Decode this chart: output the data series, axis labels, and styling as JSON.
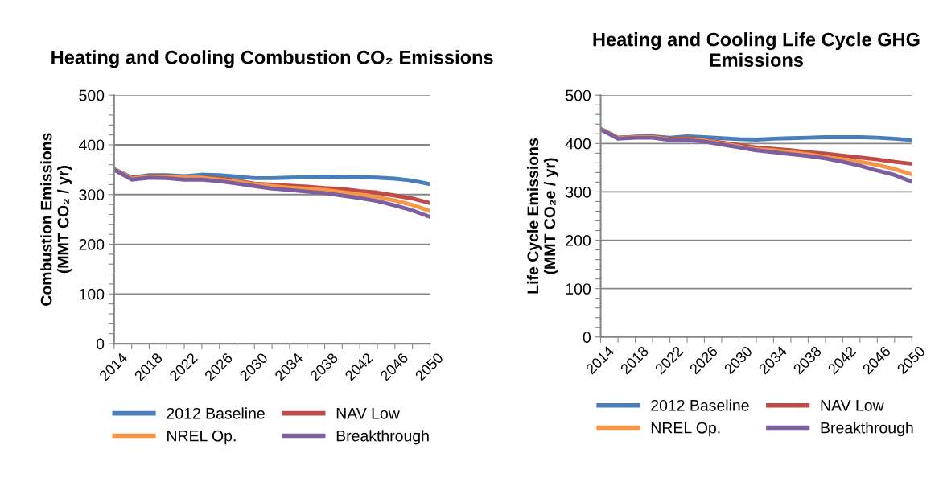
{
  "chart_data": [
    {
      "type": "line",
      "title": "Heating and Cooling Combustion CO₂ Emissions",
      "ylabel": "Combustion Emissions\n(MMT CO₂ / yr)",
      "x": [
        2014,
        2016,
        2018,
        2020,
        2022,
        2024,
        2026,
        2028,
        2030,
        2032,
        2034,
        2036,
        2038,
        2040,
        2042,
        2044,
        2046,
        2048,
        2050
      ],
      "xlim": [
        2014,
        2050
      ],
      "xticks": [
        2014,
        {
          "value": 2016,
          "label": null
        },
        2018,
        {
          "value": 2020,
          "label": null
        },
        2022,
        {
          "value": 2024,
          "label": null
        },
        2026,
        {
          "value": 2028,
          "label": null
        },
        2030,
        {
          "value": 2032,
          "label": null
        },
        2034,
        {
          "value": 2036,
          "label": null
        },
        2038,
        {
          "value": 2040,
          "label": null
        },
        2042,
        {
          "value": 2044,
          "label": null
        },
        2046,
        {
          "value": 2048,
          "label": null
        },
        2050
      ],
      "ylim": [
        0,
        500
      ],
      "yticks": [
        0,
        {
          "value": 20,
          "label": null
        },
        {
          "value": 40,
          "label": null
        },
        {
          "value": 60,
          "label": null
        },
        {
          "value": 80,
          "label": null
        },
        100,
        {
          "value": 120,
          "label": null
        },
        {
          "value": 140,
          "label": null
        },
        {
          "value": 160,
          "label": null
        },
        {
          "value": 180,
          "label": null
        },
        200,
        {
          "value": 220,
          "label": null
        },
        {
          "value": 240,
          "label": null
        },
        {
          "value": 260,
          "label": null
        },
        {
          "value": 280,
          "label": null
        },
        300,
        {
          "value": 320,
          "label": null
        },
        {
          "value": 340,
          "label": null
        },
        {
          "value": 360,
          "label": null
        },
        {
          "value": 380,
          "label": null
        },
        400,
        {
          "value": 420,
          "label": null
        },
        {
          "value": 440,
          "label": null
        },
        {
          "value": 460,
          "label": null
        },
        {
          "value": 480,
          "label": null
        },
        500
      ],
      "grid": "y",
      "legend": "bottom",
      "marker": "none",
      "line_style": "solid",
      "series": [
        {
          "name": "2012 Baseline",
          "color": "#4a7ebb",
          "values": [
            351,
            334,
            339,
            339,
            337,
            340,
            339,
            336,
            333,
            333,
            334,
            335,
            336,
            335,
            335,
            334,
            332,
            328,
            321
          ]
        },
        {
          "name": "NAV Low",
          "color": "#be4b48",
          "values": [
            351,
            333,
            337,
            337,
            335,
            335,
            332,
            328,
            322,
            320,
            318,
            316,
            313,
            311,
            307,
            304,
            298,
            292,
            283
          ]
        },
        {
          "name": "NREL Op.",
          "color": "#f79646",
          "values": [
            351,
            332,
            336,
            336,
            334,
            334,
            330,
            326,
            321,
            317,
            314,
            312,
            309,
            305,
            300,
            295,
            288,
            279,
            267
          ]
        },
        {
          "name": "Breakthrough",
          "color": "#7d5fa0",
          "values": [
            350,
            330,
            334,
            333,
            330,
            330,
            327,
            322,
            317,
            312,
            309,
            306,
            303,
            298,
            293,
            287,
            278,
            268,
            255
          ]
        }
      ]
    },
    {
      "type": "line",
      "title": "Heating and Cooling Life Cycle GHG Emissions",
      "ylabel": "Life Cycle Emissions\n(MMT CO₂e / yr)",
      "x": [
        2014,
        2016,
        2018,
        2020,
        2022,
        2024,
        2026,
        2028,
        2030,
        2032,
        2034,
        2036,
        2038,
        2040,
        2042,
        2044,
        2046,
        2048,
        2050
      ],
      "xlim": [
        2014,
        2050
      ],
      "xticks": [
        2014,
        {
          "value": 2016,
          "label": null
        },
        2018,
        {
          "value": 2020,
          "label": null
        },
        2022,
        {
          "value": 2024,
          "label": null
        },
        2026,
        {
          "value": 2028,
          "label": null
        },
        2030,
        {
          "value": 2032,
          "label": null
        },
        2034,
        {
          "value": 2036,
          "label": null
        },
        2038,
        {
          "value": 2040,
          "label": null
        },
        2042,
        {
          "value": 2044,
          "label": null
        },
        2046,
        {
          "value": 2048,
          "label": null
        },
        2050
      ],
      "ylim": [
        0,
        500
      ],
      "yticks": [
        0,
        {
          "value": 20,
          "label": null
        },
        {
          "value": 40,
          "label": null
        },
        {
          "value": 60,
          "label": null
        },
        {
          "value": 80,
          "label": null
        },
        100,
        {
          "value": 120,
          "label": null
        },
        {
          "value": 140,
          "label": null
        },
        {
          "value": 160,
          "label": null
        },
        {
          "value": 180,
          "label": null
        },
        200,
        {
          "value": 220,
          "label": null
        },
        {
          "value": 240,
          "label": null
        },
        {
          "value": 260,
          "label": null
        },
        {
          "value": 280,
          "label": null
        },
        300,
        {
          "value": 320,
          "label": null
        },
        {
          "value": 340,
          "label": null
        },
        {
          "value": 360,
          "label": null
        },
        {
          "value": 380,
          "label": null
        },
        400,
        {
          "value": 420,
          "label": null
        },
        {
          "value": 440,
          "label": null
        },
        {
          "value": 460,
          "label": null
        },
        {
          "value": 480,
          "label": null
        },
        500
      ],
      "grid": "y",
      "legend": "bottom",
      "marker": "none",
      "line_style": "solid",
      "series": [
        {
          "name": "2012 Baseline",
          "color": "#4a7ebb",
          "values": [
            430,
            412,
            414,
            415,
            412,
            415,
            413,
            411,
            409,
            408,
            410,
            411,
            412,
            413,
            413,
            413,
            412,
            410,
            407
          ]
        },
        {
          "name": "NAV Low",
          "color": "#be4b48",
          "values": [
            430,
            412,
            414,
            414,
            410,
            411,
            407,
            402,
            397,
            392,
            389,
            386,
            382,
            379,
            375,
            371,
            367,
            362,
            358
          ]
        },
        {
          "name": "NREL Op.",
          "color": "#f79646",
          "values": [
            430,
            411,
            413,
            413,
            408,
            409,
            406,
            400,
            394,
            388,
            386,
            382,
            378,
            372,
            367,
            362,
            356,
            347,
            336
          ]
        },
        {
          "name": "Breakthrough",
          "color": "#7d5fa0",
          "values": [
            429,
            410,
            412,
            412,
            407,
            407,
            404,
            398,
            392,
            386,
            382,
            378,
            374,
            369,
            362,
            354,
            344,
            335,
            321
          ]
        }
      ]
    }
  ]
}
